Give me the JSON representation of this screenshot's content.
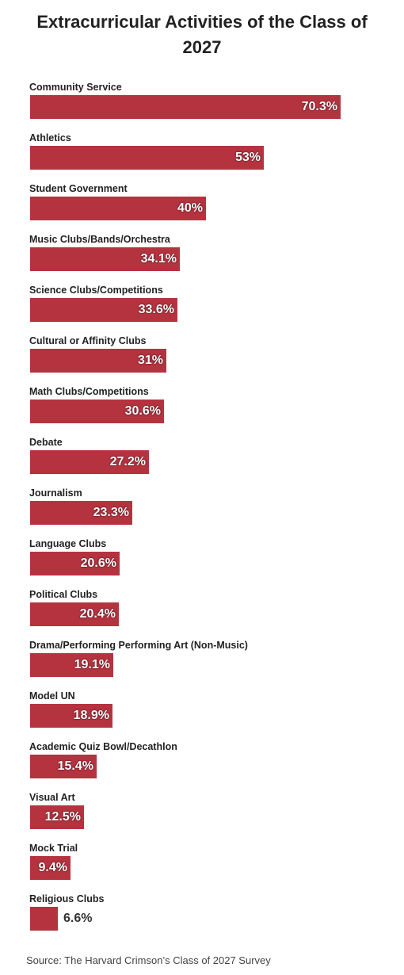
{
  "chart_data": {
    "type": "bar",
    "orientation": "horizontal",
    "title": "Extracurricular Activities of the Class of 2027",
    "source": "Source: The Harvard Crimson’s Class of 2027 Survey",
    "unit": "%",
    "xlim": [
      0,
      70.3
    ],
    "grid": false,
    "bar_color": "#b5333f",
    "categories": [
      "Community Service",
      "Athletics",
      "Student Government",
      "Music Clubs/Bands/Orchestra",
      "Science Clubs/Competitions",
      "Cultural or Affinity Clubs",
      "Math Clubs/Competitions",
      "Debate",
      "Journalism",
      "Language Clubs",
      "Political Clubs",
      "Drama/Performing Performing Art (Non-Music)",
      "Model UN",
      "Academic Quiz Bowl/Decathlon",
      "Visual Art",
      "Mock Trial",
      "Religious Clubs"
    ],
    "values": [
      70.3,
      53,
      40,
      34.1,
      33.6,
      31,
      30.6,
      27.2,
      23.3,
      20.6,
      20.4,
      19.1,
      18.9,
      15.4,
      12.5,
      9.4,
      6.6
    ],
    "value_labels": [
      "70.3%",
      "53%",
      "40%",
      "34.1%",
      "33.6%",
      "31%",
      "30.6%",
      "27.2%",
      "23.3%",
      "20.6%",
      "20.4%",
      "19.1%",
      "18.9%",
      "15.4%",
      "12.5%",
      "9.4%",
      "6.6%"
    ]
  }
}
